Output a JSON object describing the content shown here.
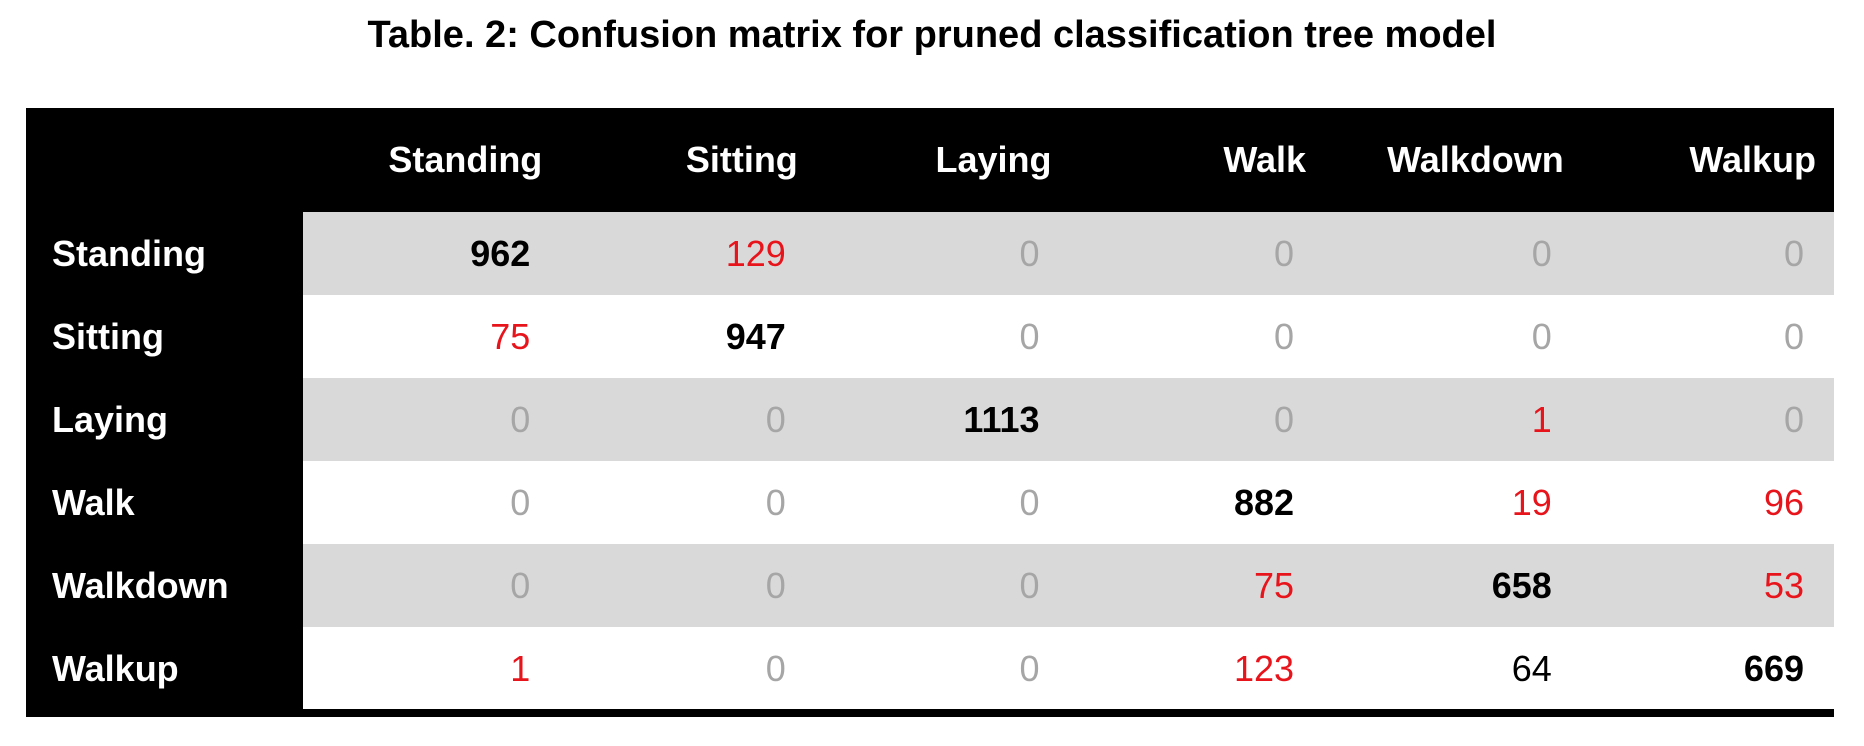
{
  "title": "Table. 2: Confusion matrix for pruned classification tree model",
  "colors": {
    "header_bg": "#000000",
    "header_text": "#ffffff",
    "shaded_row": "#d9d9d9",
    "correct": "#000000",
    "misclassified": "#e8141c",
    "zero": "#a6a6a6"
  },
  "columns": [
    "Standing",
    "Sitting",
    "Laying",
    "Walk",
    "Walkdown",
    "Walkup"
  ],
  "rows": [
    {
      "label": "Standing",
      "values": [
        "962",
        "129",
        "0",
        "0",
        "0",
        "0"
      ],
      "styles": [
        "correct",
        "misclassified",
        "zero",
        "zero",
        "zero",
        "zero"
      ]
    },
    {
      "label": "Sitting",
      "values": [
        "75",
        "947",
        "0",
        "0",
        "0",
        "0"
      ],
      "styles": [
        "misclassified",
        "correct",
        "zero",
        "zero",
        "zero",
        "zero"
      ]
    },
    {
      "label": "Laying",
      "values": [
        "0",
        "0",
        "1113",
        "0",
        "1",
        "0"
      ],
      "styles": [
        "zero",
        "zero",
        "correct",
        "zero",
        "misclassified",
        "zero"
      ]
    },
    {
      "label": "Walk",
      "values": [
        "0",
        "0",
        "0",
        "882",
        "19",
        "96"
      ],
      "styles": [
        "zero",
        "zero",
        "zero",
        "correct",
        "misclassified",
        "misclassified"
      ]
    },
    {
      "label": "Walkdown",
      "values": [
        "0",
        "0",
        "0",
        "75",
        "658",
        "53"
      ],
      "styles": [
        "zero",
        "zero",
        "zero",
        "misclassified",
        "correct",
        "misclassified"
      ]
    },
    {
      "label": "Walkup",
      "values": [
        "1",
        "0",
        "0",
        "123",
        "64",
        "669"
      ],
      "styles": [
        "misclassified",
        "zero",
        "zero",
        "misclassified",
        "plain",
        "correct"
      ]
    }
  ]
}
